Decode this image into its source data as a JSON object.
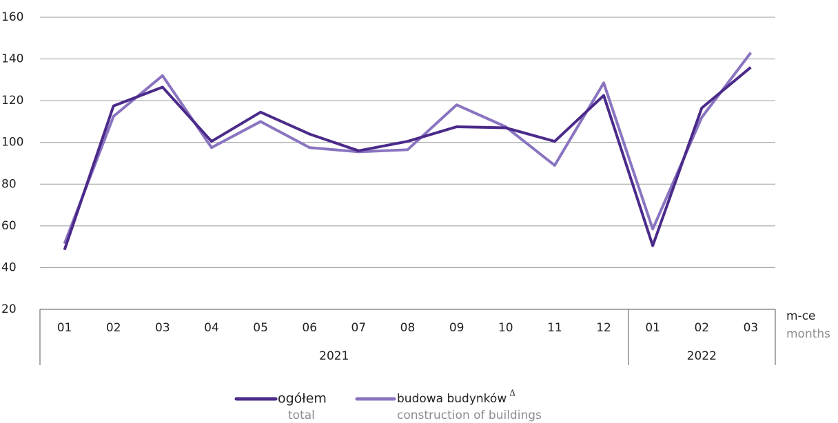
{
  "chart_data": {
    "type": "line",
    "categories": [
      "01",
      "02",
      "03",
      "04",
      "05",
      "06",
      "07",
      "08",
      "09",
      "10",
      "11",
      "12",
      "01",
      "02",
      "03"
    ],
    "year_groups": [
      {
        "label": "2021",
        "span": 12
      },
      {
        "label": "2022",
        "span": 3
      }
    ],
    "x_label": "m-ce",
    "x_label_en": "months",
    "series": [
      {
        "name": "ogółem",
        "name_en": "total",
        "color": "#4b2a8a",
        "values": [
          48.5,
          117.5,
          126.5,
          100.5,
          114.5,
          104,
          96,
          100.5,
          107.5,
          107,
          100.5,
          122.5,
          50.5,
          116.5,
          136
        ]
      },
      {
        "name": "budowa budynków",
        "marker": "Δ",
        "name_en": "construction of buildings",
        "color": "#8a74c0",
        "values": [
          51.5,
          112.5,
          132,
          97.5,
          110,
          97.5,
          95.5,
          96.5,
          118,
          107.5,
          89,
          128.5,
          58.5,
          112,
          143
        ]
      }
    ],
    "ylim": [
      20,
      160
    ],
    "yticks": [
      20,
      40,
      60,
      80,
      100,
      120,
      140,
      160
    ],
    "grid": true
  }
}
